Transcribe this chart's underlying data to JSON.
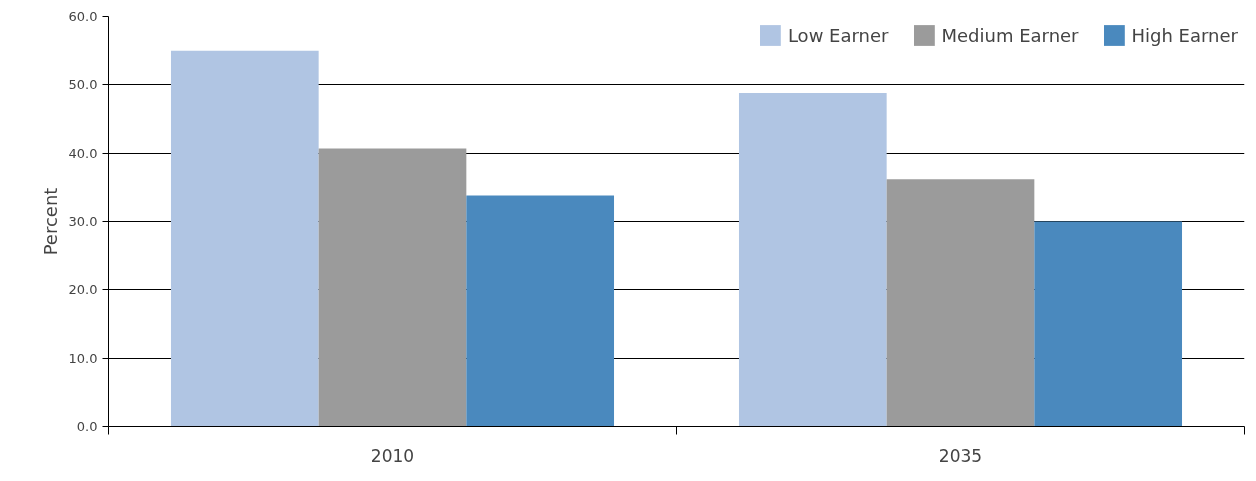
{
  "chart_data": {
    "type": "bar",
    "ylabel": "Percent",
    "categories": [
      "2010",
      "2035"
    ],
    "series": [
      {
        "name": "Low Earner",
        "color": "#b0c5e3",
        "values": [
          55.0,
          48.8
        ]
      },
      {
        "name": "Medium Earner",
        "color": "#9b9b9b",
        "values": [
          40.7,
          36.2
        ]
      },
      {
        "name": "High Earner",
        "color": "#4a89be",
        "values": [
          33.8,
          30.0
        ]
      }
    ],
    "ylim": [
      0,
      60
    ],
    "yticks": [
      {
        "value": 0,
        "label": "0.0"
      },
      {
        "value": 10,
        "label": "10.0"
      },
      {
        "value": 20,
        "label": "20.0"
      },
      {
        "value": 30,
        "label": "30.0"
      },
      {
        "value": 40,
        "label": "40.0"
      },
      {
        "value": 50,
        "label": "50.0"
      },
      {
        "value": 60,
        "label": "60.0"
      }
    ],
    "grid": "y",
    "legend": "top right"
  }
}
